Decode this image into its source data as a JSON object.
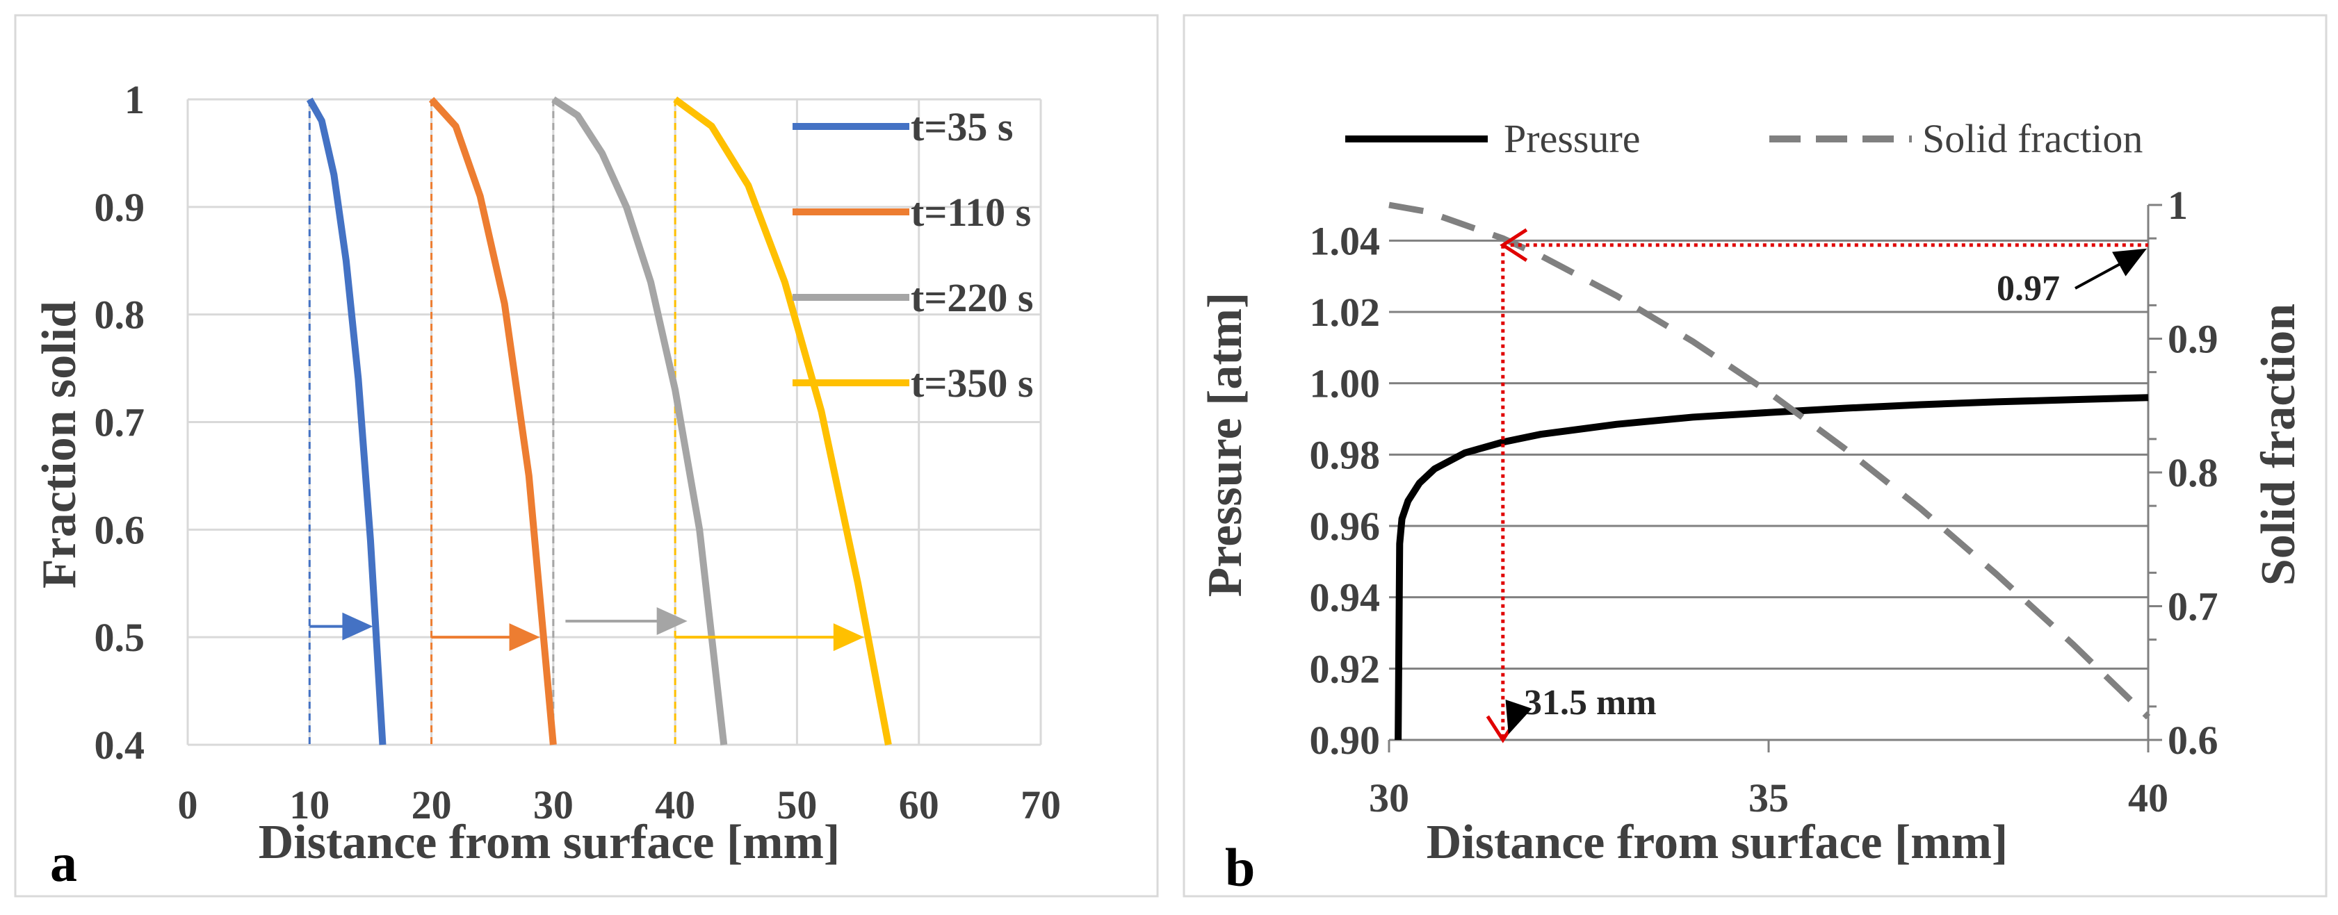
{
  "chart_data": [
    {
      "type": "line",
      "panel_label": "a",
      "xlabel": "Distance from surface [mm]",
      "ylabel": "Fraction solid",
      "xlim": [
        0,
        70
      ],
      "ylim": [
        0.4,
        1
      ],
      "xticks": [
        "0",
        "10",
        "20",
        "30",
        "40",
        "50",
        "60",
        "70"
      ],
      "yticks": [
        "0.4",
        "0.5",
        "0.6",
        "0.7",
        "0.8",
        "0.9",
        "1"
      ],
      "grid": true,
      "legend_position": "top-right",
      "series": [
        {
          "name": "t=35 s",
          "color": "#4472C4",
          "x": [
            10,
            11,
            12,
            13,
            14,
            15,
            16
          ],
          "y": [
            1,
            0.98,
            0.93,
            0.85,
            0.74,
            0.59,
            0.4
          ],
          "marker_x": 10,
          "arrow": {
            "y": 0.51,
            "x_from": 10,
            "x_to": 15.2
          }
        },
        {
          "name": "t=110 s",
          "color": "#ED7D31",
          "x": [
            20,
            22,
            24,
            26,
            28,
            30
          ],
          "y": [
            1,
            0.975,
            0.91,
            0.81,
            0.65,
            0.4
          ],
          "marker_x": 20,
          "arrow": {
            "y": 0.5,
            "x_from": 20,
            "x_to": 28.9
          }
        },
        {
          "name": "t=220 s",
          "color": "#A5A5A5",
          "x": [
            30,
            32,
            34,
            36,
            38,
            40,
            42,
            44
          ],
          "y": [
            1,
            0.985,
            0.95,
            0.9,
            0.83,
            0.73,
            0.6,
            0.4
          ],
          "marker_x": 30,
          "arrow": {
            "y": 0.515,
            "x_from": 31,
            "x_to": 41
          }
        },
        {
          "name": "t=350 s",
          "color": "#FFC000",
          "x": [
            40,
            43,
            46,
            49,
            52,
            55,
            57.5
          ],
          "y": [
            1,
            0.975,
            0.92,
            0.83,
            0.71,
            0.55,
            0.4
          ],
          "marker_x": 40,
          "arrow": {
            "y": 0.5,
            "x_from": 40,
            "x_to": 55.5
          }
        }
      ]
    },
    {
      "type": "line",
      "panel_label": "b",
      "xlabel": "Distance from surface [mm]",
      "ylabel": "Pressure [atm]",
      "y2label": "Solid fraction",
      "xlim": [
        30,
        40
      ],
      "ylim": [
        0.9,
        1.05
      ],
      "y2lim": [
        0.6,
        1
      ],
      "xticks": [
        "30",
        "35",
        "40"
      ],
      "yticks": [
        "0.90",
        "0.92",
        "0.94",
        "0.96",
        "0.98",
        "1.00",
        "1.02",
        "1.04"
      ],
      "y2ticks": [
        "0.6",
        "0.7",
        "0.8",
        "0.9",
        "1"
      ],
      "grid": true,
      "legend_position": "top",
      "series": [
        {
          "name": "Pressure",
          "axis": "left",
          "color": "#000000",
          "style": "solid",
          "x": [
            30.12,
            30.14,
            30.17,
            30.25,
            30.4,
            30.6,
            31,
            31.5,
            32,
            33,
            34,
            35,
            36,
            37,
            38,
            39,
            40
          ],
          "y": [
            0.9,
            0.955,
            0.962,
            0.967,
            0.972,
            0.976,
            0.9805,
            0.9835,
            0.9857,
            0.9885,
            0.9905,
            0.9918,
            0.993,
            0.994,
            0.9948,
            0.9954,
            0.996
          ]
        },
        {
          "name": "Solid fraction",
          "axis": "right",
          "color": "#808080",
          "style": "dashed",
          "x": [
            30,
            30.5,
            31,
            31.5,
            32,
            33,
            34,
            35,
            36,
            37,
            38,
            39,
            40
          ],
          "y": [
            1,
            0.995,
            0.985,
            0.975,
            0.962,
            0.932,
            0.898,
            0.86,
            0.818,
            0.773,
            0.724,
            0.672,
            0.617
          ]
        }
      ],
      "annotations": [
        {
          "text": "0.97",
          "x": 40,
          "y2": 0.97
        },
        {
          "text": "31.5 mm",
          "x": 31.5,
          "y": 0.9
        }
      ]
    }
  ]
}
